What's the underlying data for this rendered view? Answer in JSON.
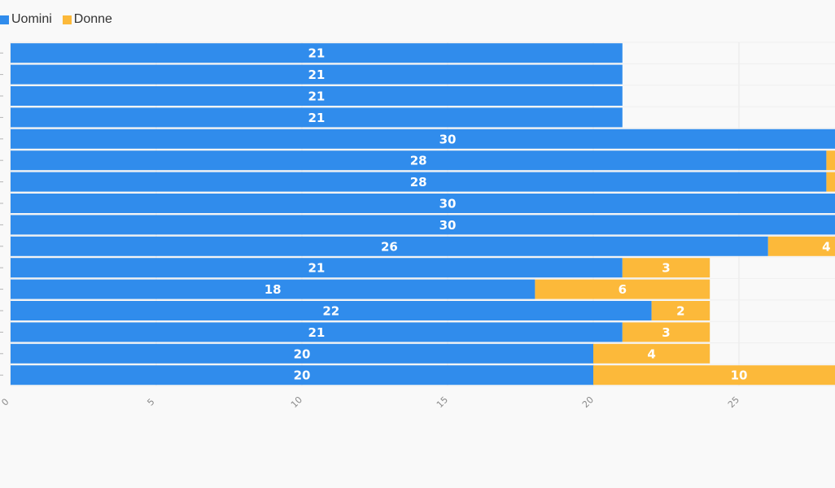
{
  "colors": {
    "background": "#f9f9f9",
    "gridline": "#e6e6e6",
    "uomini": "#308cec",
    "donne": "#fcb93a",
    "label_text": "#ffffff",
    "tick_text": "#8a8a8a"
  },
  "legend": [
    {
      "name": "Uomini",
      "color": "#308cec"
    },
    {
      "name": "Donne",
      "color": "#fcb93a"
    }
  ],
  "chart_data": {
    "type": "bar",
    "orientation": "horizontal",
    "stacked": true,
    "title": "",
    "xlabel": "",
    "ylabel": "",
    "xlim": [
      0,
      28.5
    ],
    "x_ticks": [
      0,
      5,
      10,
      15,
      20,
      25
    ],
    "grid": true,
    "legend_position": "top-left",
    "series": [
      {
        "name": "Uomini",
        "values": [
          21,
          21,
          21,
          21,
          30,
          28,
          28,
          30,
          30,
          26,
          21,
          18,
          22,
          21,
          20,
          20
        ]
      },
      {
        "name": "Donne",
        "values": [
          0,
          0,
          0,
          0,
          0,
          2,
          2,
          0,
          0,
          4,
          3,
          6,
          2,
          3,
          4,
          10
        ]
      }
    ]
  }
}
